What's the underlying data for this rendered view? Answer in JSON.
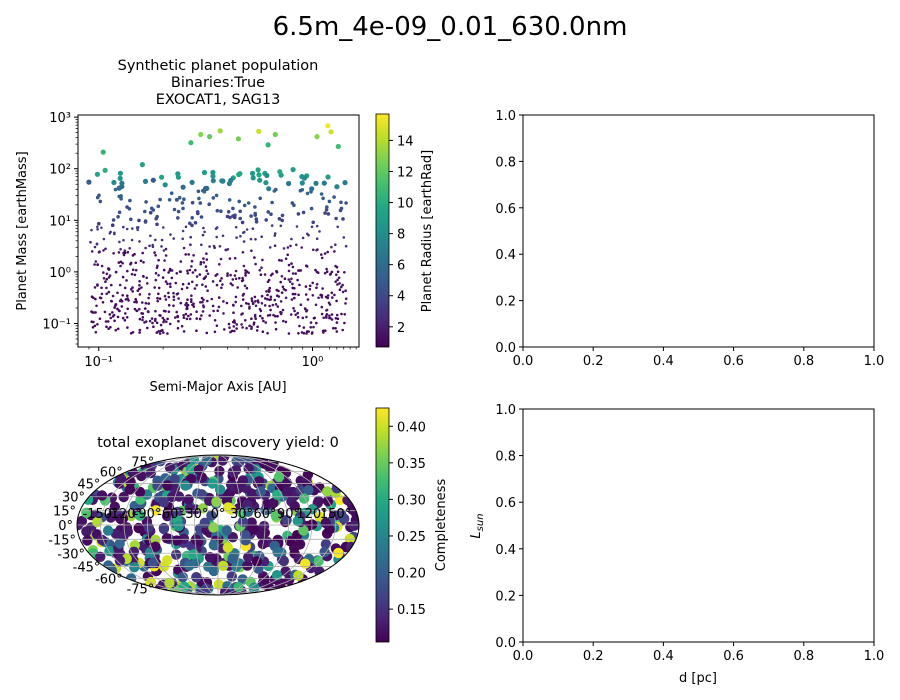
{
  "figure": {
    "suptitle": "6.5m_4e-09_0.01_630.0nm"
  },
  "chart_data": [
    {
      "type": "scatter",
      "panel": "top-left",
      "title_lines": [
        "Synthetic planet population",
        "Binaries:True",
        "EXOCAT1, SAG13"
      ],
      "xlabel": "Semi-Major Axis [AU]",
      "ylabel": "Planet Mass [earthMass]",
      "xscale": "log",
      "yscale": "log",
      "xlim": [
        0.08,
        1.65
      ],
      "ylim": [
        0.035,
        1100
      ],
      "xticks": [
        {
          "label": "10⁻¹",
          "value": 0.1
        },
        {
          "label": "10⁰",
          "value": 1
        }
      ],
      "yticks": [
        {
          "label": "10⁻¹",
          "value": 0.1
        },
        {
          "label": "10⁰",
          "value": 1
        },
        {
          "label": "10¹",
          "value": 10
        },
        {
          "label": "10²",
          "value": 100
        },
        {
          "label": "10³",
          "value": 1000
        }
      ],
      "colorbar": {
        "label": "Planet Radius [earthRad]",
        "range": [
          0.7,
          15.7
        ],
        "ticks": [
          "2",
          "4",
          "6",
          "8",
          "10",
          "12",
          "14"
        ],
        "colormap": "viridis"
      },
      "points_note": "approximately 900 synthetic planets spread over a = 0.09-1.45 AU, M = 0.06-700 earthMass; color follows planet radius",
      "points_sample": [
        {
          "x": 0.105,
          "y": 210,
          "c": 10.5
        },
        {
          "x": 0.16,
          "y": 120,
          "c": 9.5
        },
        {
          "x": 0.27,
          "y": 320,
          "c": 11
        },
        {
          "x": 0.3,
          "y": 460,
          "c": 13
        },
        {
          "x": 0.33,
          "y": 420,
          "c": 12
        },
        {
          "x": 0.37,
          "y": 540,
          "c": 13.5
        },
        {
          "x": 0.45,
          "y": 380,
          "c": 12.5
        },
        {
          "x": 0.56,
          "y": 530,
          "c": 14.5
        },
        {
          "x": 0.62,
          "y": 290,
          "c": 10.5
        },
        {
          "x": 0.67,
          "y": 460,
          "c": 12.5
        },
        {
          "x": 1.05,
          "y": 420,
          "c": 13
        },
        {
          "x": 1.18,
          "y": 680,
          "c": 15.5
        },
        {
          "x": 1.22,
          "y": 520,
          "c": 14.5
        },
        {
          "x": 1.32,
          "y": 270,
          "c": 11
        },
        {
          "x": 0.09,
          "y": 55,
          "c": 5
        },
        {
          "x": 0.18,
          "y": 60,
          "c": 5
        }
      ]
    },
    {
      "type": "empty",
      "panel": "top-right",
      "xlim": [
        0,
        1
      ],
      "ylim": [
        0,
        1
      ],
      "xticks": [
        "0.0",
        "0.2",
        "0.4",
        "0.6",
        "0.8",
        "1.0"
      ],
      "yticks": [
        "0.0",
        "0.2",
        "0.4",
        "0.6",
        "0.8",
        "1.0"
      ]
    },
    {
      "type": "scatter",
      "panel": "bottom-left",
      "projection": "mollweide",
      "title": "total exoplanet discovery yield: 0",
      "lat_ticks": [
        "75°",
        "60°",
        "45°",
        "30°",
        "15°",
        "0°",
        "-15°",
        "-30°",
        "-45°",
        "-60°",
        "-75°"
      ],
      "lon_ticks": [
        "-150°",
        "-120°",
        "-90°",
        "-60°",
        "-30°",
        "0°",
        "30°",
        "60°",
        "90°",
        "120°",
        "150°"
      ],
      "colorbar": {
        "label": "Completeness",
        "range": [
          0.105,
          0.425
        ],
        "ticks": [
          "0.15",
          "0.20",
          "0.25",
          "0.30",
          "0.35",
          "0.40"
        ],
        "colormap": "viridis"
      },
      "points_note": "hundreds of target stars plotted as large dots across the whole sky; color follows completeness"
    },
    {
      "type": "empty",
      "panel": "bottom-right",
      "xlabel": "d [pc]",
      "ylabel": "L_sun",
      "xlim": [
        0,
        1
      ],
      "ylim": [
        0,
        1
      ],
      "xticks": [
        "0.0",
        "0.2",
        "0.4",
        "0.6",
        "0.8",
        "1.0"
      ],
      "yticks": [
        "0.0",
        "0.2",
        "0.4",
        "0.6",
        "0.8",
        "1.0"
      ]
    }
  ]
}
